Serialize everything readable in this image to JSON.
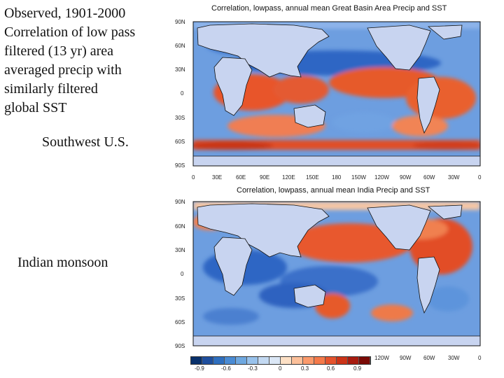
{
  "intro": {
    "lines": [
      "Observed, 1901-2000",
      "Correlation of low pass",
      "filtered (13 yr) area",
      "averaged precip with",
      "similarly filtered",
      "global SST"
    ]
  },
  "labels": {
    "southwest": "Southwest U.S.",
    "india": "Indian monsoon"
  },
  "maps": [
    {
      "title": "Correlation, lowpass, annual mean Great Basin Area Precip and SST",
      "lat_ticks": [
        "90N",
        "60N",
        "30N",
        "0",
        "30S",
        "60S",
        "90S"
      ],
      "lon_ticks": [
        "0",
        "30E",
        "60E",
        "90E",
        "120E",
        "150E",
        "180",
        "150W",
        "120W",
        "90W",
        "60W",
        "30W",
        "0"
      ]
    },
    {
      "title": "Correlation, lowpass, annual mean India Precip and SST",
      "lat_ticks": [
        "90N",
        "60N",
        "30N",
        "0",
        "30S",
        "60S",
        "90S"
      ],
      "lon_ticks_visible": [
        "120W",
        "90W",
        "60W",
        "30W",
        "0"
      ]
    }
  ],
  "colorbar": {
    "ticks": [
      "-0.9",
      "-0.6",
      "-0.3",
      "0",
      "0.3",
      "0.6",
      "0.9"
    ],
    "colors": [
      "#08306b",
      "#1f4f9e",
      "#2f6fbf",
      "#4a8bd4",
      "#6fa8e0",
      "#98c2ec",
      "#c3d9f2",
      "#dbe7f6",
      "#fde0c5",
      "#fcc09a",
      "#fb9a6c",
      "#f57a4a",
      "#e5532d",
      "#cc3418",
      "#a81c10",
      "#7a0a06"
    ]
  },
  "palette": {
    "land": "#c8d4f0",
    "ocean_neg": "#3f7fd0",
    "ocean_pos": "#e8582e"
  }
}
